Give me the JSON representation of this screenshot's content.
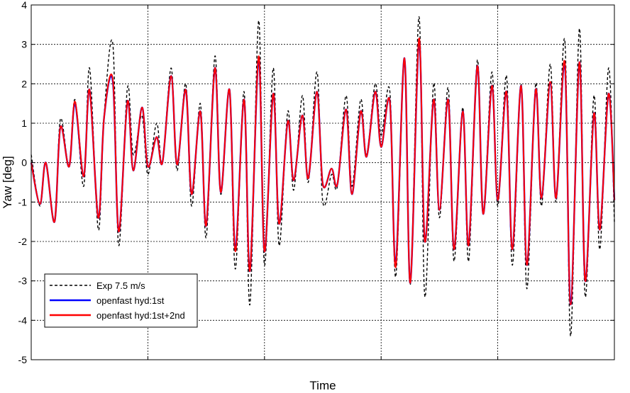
{
  "chart_data": {
    "type": "line",
    "title": "",
    "xlabel": "Time",
    "ylabel": "Yaw [deg]",
    "ylim": [
      -5,
      4
    ],
    "yticks": [
      -5,
      -4,
      -3,
      -2,
      -1,
      0,
      1,
      2,
      3,
      4
    ],
    "xlim": [
      0,
      100
    ],
    "x_tick_labels_shown": false,
    "grid": true,
    "legend_position": "lower-left",
    "colors": {
      "exp": "#000000",
      "hyd1": "#0000ff",
      "hyd12": "#ff0000"
    },
    "x": [
      0,
      1.5,
      2.5,
      4,
      5,
      6.5,
      7.5,
      9,
      10,
      11.5,
      12.5,
      14,
      15,
      16.5,
      17.5,
      19,
      20,
      21.5,
      22.5,
      24,
      25,
      26.5,
      27.5,
      29,
      30,
      31.5,
      32.5,
      34,
      35,
      36.5,
      37.5,
      39,
      40,
      41.5,
      42.5,
      44,
      45,
      46.5,
      47.5,
      49,
      50,
      51.5,
      52.5,
      54,
      55,
      56.5,
      57.5,
      59,
      60,
      61.5,
      62.5,
      64,
      65,
      66.5,
      67.5,
      69,
      70,
      71.5,
      72.5,
      74,
      75,
      76.5,
      77.5,
      79,
      80,
      81.5,
      82.5,
      84,
      85,
      86.5,
      87.5,
      89,
      90,
      91.5,
      92.5,
      94,
      95,
      96.5,
      97.5,
      99,
      100
    ],
    "series": [
      {
        "name": "Exp 7.5 m/s",
        "style": "dashed",
        "values": [
          0.2,
          -1.1,
          0,
          -1.5,
          1.1,
          -0.1,
          1.6,
          -0.6,
          2.4,
          -1.7,
          1.2,
          3.0,
          -2.1,
          1.9,
          0.2,
          1.2,
          -0.3,
          1.0,
          0,
          2.4,
          -0.2,
          2.0,
          -1.1,
          1.5,
          -1.9,
          2.7,
          -0.8,
          1.8,
          -2.7,
          1.8,
          -3.6,
          3.6,
          -2.6,
          2.4,
          -2.1,
          1.3,
          -0.7,
          1.7,
          -0.5,
          2.3,
          -1.0,
          -0.3,
          -0.6,
          1.7,
          -0.6,
          1.6,
          0.2,
          2.0,
          0.7,
          1.8,
          -2.9,
          2.6,
          -3.1,
          3.7,
          -3.4,
          2.0,
          -1.4,
          1.9,
          -2.5,
          1.4,
          -2.5,
          2.6,
          -1.3,
          2.3,
          -1.1,
          2.2,
          -2.6,
          2.0,
          -3.2,
          2.0,
          -1.1,
          2.5,
          -1.0,
          3.1,
          -4.4,
          3.4,
          -3.4,
          1.7,
          -2.2,
          2.4,
          -1.5
        ]
      },
      {
        "name": "openfast hyd:1st",
        "style": "solid",
        "values": [
          0.0,
          -1.05,
          0,
          -1.5,
          0.9,
          -0.1,
          1.5,
          -0.35,
          1.85,
          -1.4,
          1.15,
          2.05,
          -1.75,
          1.55,
          -0.2,
          1.4,
          -0.1,
          0.65,
          0,
          2.2,
          -0.05,
          1.85,
          -0.8,
          1.3,
          -1.6,
          2.4,
          -0.75,
          1.85,
          -2.2,
          1.6,
          -2.75,
          2.65,
          -2.25,
          1.75,
          -1.55,
          1.05,
          -0.45,
          1.2,
          -0.4,
          1.8,
          -0.55,
          -0.15,
          -0.55,
          1.35,
          -0.8,
          1.3,
          0.15,
          1.8,
          0.4,
          1.55,
          -2.6,
          2.65,
          -3.05,
          3.1,
          -2.0,
          1.6,
          -1.2,
          1.6,
          -2.2,
          1.3,
          -2.1,
          2.45,
          -1.3,
          1.95,
          -0.95,
          1.8,
          -2.2,
          1.95,
          -2.6,
          1.85,
          -0.9,
          2.0,
          -0.9,
          2.5,
          -3.6,
          2.55,
          -3.0,
          1.25,
          -1.7,
          1.75,
          -0.95
        ]
      },
      {
        "name": "openfast hyd:1st+2nd",
        "style": "solid",
        "values": [
          0.0,
          -1.05,
          0,
          -1.5,
          0.9,
          -0.1,
          1.55,
          -0.35,
          1.85,
          -1.4,
          1.15,
          2.1,
          -1.75,
          1.55,
          -0.2,
          1.4,
          -0.1,
          0.65,
          0,
          2.2,
          -0.05,
          1.85,
          -0.8,
          1.3,
          -1.6,
          2.4,
          -0.75,
          1.85,
          -2.25,
          1.6,
          -2.75,
          2.7,
          -2.25,
          1.75,
          -1.55,
          1.05,
          -0.45,
          1.2,
          -0.4,
          1.8,
          -0.55,
          -0.15,
          -0.55,
          1.35,
          -0.8,
          1.3,
          0.15,
          1.8,
          0.4,
          1.55,
          -2.65,
          2.65,
          -3.05,
          3.15,
          -2.0,
          1.6,
          -1.2,
          1.6,
          -2.2,
          1.3,
          -2.1,
          2.45,
          -1.3,
          1.95,
          -0.95,
          1.8,
          -2.2,
          1.95,
          -2.6,
          1.85,
          -0.9,
          2.05,
          -0.9,
          2.55,
          -3.6,
          2.55,
          -3.0,
          1.25,
          -1.7,
          1.75,
          -0.95
        ]
      }
    ]
  }
}
